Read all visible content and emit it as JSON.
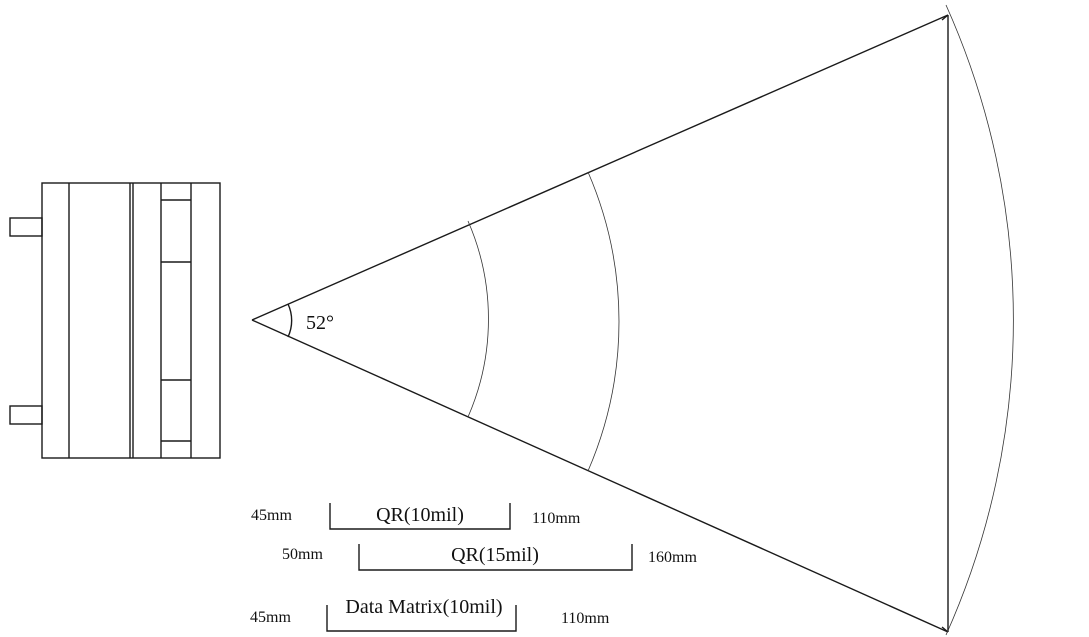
{
  "angle_label": "52°",
  "ranges": [
    {
      "name": "QR(10mil)",
      "near": "45mm",
      "far": "110mm"
    },
    {
      "name": "QR(15mil)",
      "near": "50mm",
      "far": "160mm"
    },
    {
      "name": "Data Matrix(10mil)",
      "near": "45mm",
      "far": "110mm"
    }
  ],
  "colors": {
    "line": "#1a1a1a",
    "background": "#ffffff"
  }
}
